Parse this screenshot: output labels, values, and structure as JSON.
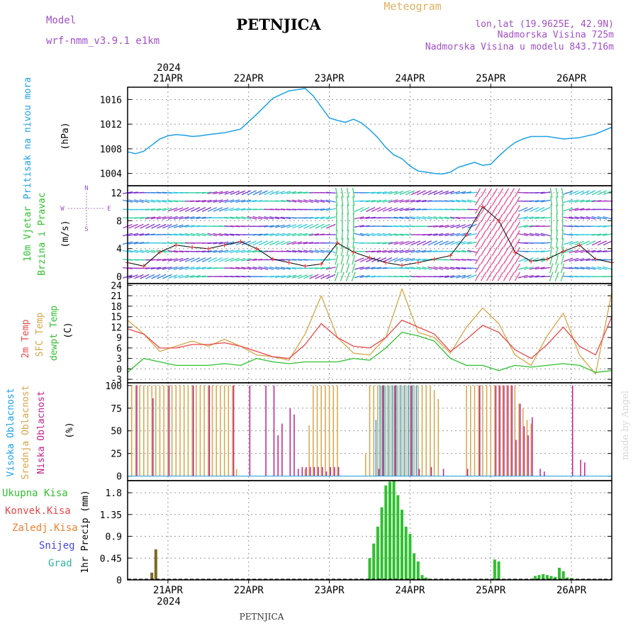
{
  "header": {
    "model_label": "Model",
    "model_name": "wrf-nmm_v3.9.1 e1km",
    "location": "PETNJICA",
    "product": "Meteogram",
    "coords": "lon,lat (19.9625E, 42.9N)",
    "elevation": "Nadmorska Visina 725m",
    "model_elevation": "Nadmorska Visina u modelu 843.716m"
  },
  "footer": {
    "location": "PETNJICA",
    "credit": "made by Angel"
  },
  "colors": {
    "pressure": "#1ea0e6",
    "temp2m": "#e8484a",
    "sfc": "#d6a54a",
    "dewpt": "#30c030",
    "high_cloud": "#1ea0e6",
    "mid_cloud": "#d6a54a",
    "low_cloud": "#c0208a",
    "total_precip": "#30c030",
    "conv_precip": "#e8484a",
    "freezing": "#f08030",
    "snow": "#4444dd",
    "hail": "#30b0a0",
    "purple_text": "#a050c8",
    "orange_text": "#e0b060"
  },
  "chart_data": [
    {
      "type": "line",
      "id": "pressure",
      "ylabel": [
        "Pritisak na nivou mora",
        "(hPa)"
      ],
      "x_unit": "days since 2024-04-20 12:00",
      "xlim": [
        0,
        6
      ],
      "ylim": [
        1002,
        1018
      ],
      "yticks": [
        1004,
        1008,
        1012,
        1016
      ],
      "grid": true,
      "top_axis": {
        "year": "2024",
        "ticks": [
          "21APR",
          "22APR",
          "23APR",
          "24APR",
          "25APR",
          "26APR"
        ]
      },
      "series": [
        {
          "name": "Pritisak na nivou mora",
          "x": [
            0,
            0.1,
            0.2,
            0.3,
            0.4,
            0.5,
            0.6,
            0.7,
            0.8,
            0.9,
            1.0,
            1.2,
            1.4,
            1.6,
            1.8,
            2.0,
            2.2,
            2.3,
            2.4,
            2.5,
            2.6,
            2.7,
            2.8,
            2.9,
            3.0,
            3.1,
            3.2,
            3.3,
            3.4,
            3.5,
            3.6,
            3.7,
            3.8,
            3.9,
            4.0,
            4.1,
            4.2,
            4.3,
            4.4,
            4.5,
            4.6,
            4.7,
            4.8,
            4.9,
            5.0,
            5.2,
            5.4,
            5.6,
            5.8,
            6.0
          ],
          "values": [
            1007.5,
            1007.2,
            1007.6,
            1008.6,
            1009.6,
            1010.1,
            1010.3,
            1010.2,
            1010.0,
            1010.1,
            1010.3,
            1010.6,
            1011.2,
            1013.6,
            1016.2,
            1017.4,
            1017.8,
            1016.6,
            1014.8,
            1013.0,
            1012.6,
            1012.3,
            1012.8,
            1012.2,
            1011.1,
            1009.8,
            1008.2,
            1007.0,
            1006.4,
            1005.2,
            1004.4,
            1004.2,
            1004.0,
            1003.9,
            1004.2,
            1005.0,
            1005.4,
            1005.8,
            1005.3,
            1005.5,
            1006.8,
            1008.0,
            1009.0,
            1009.6,
            1010.0,
            1010.0,
            1009.6,
            1009.8,
            1010.4,
            1011.5
          ]
        }
      ]
    },
    {
      "type": "line",
      "id": "wind",
      "ylabel": [
        "10m Vjetar",
        "Brzina i Pravac",
        "(m/s)"
      ],
      "compass": [
        "N",
        "W",
        "E",
        "S"
      ],
      "xlim": [
        0,
        6
      ],
      "ylim": [
        -1,
        13
      ],
      "yticks": [
        0,
        4,
        8,
        12
      ],
      "grid": true,
      "series": [
        {
          "name": "Brzina",
          "x": [
            0,
            0.2,
            0.4,
            0.6,
            0.8,
            1.0,
            1.2,
            1.4,
            1.6,
            1.8,
            2.0,
            2.2,
            2.4,
            2.6,
            2.8,
            3.0,
            3.2,
            3.4,
            3.6,
            3.8,
            4.0,
            4.2,
            4.4,
            4.6,
            4.8,
            5.0,
            5.2,
            5.4,
            5.6,
            5.8,
            6.0
          ],
          "values": [
            2,
            1.5,
            3.5,
            4.5,
            4.2,
            4.0,
            4.5,
            5.0,
            4.0,
            2.5,
            2.0,
            1.5,
            1.8,
            4.8,
            3.5,
            2.7,
            2.0,
            1.6,
            2.0,
            2.5,
            3.0,
            6.0,
            10.0,
            8.0,
            3.5,
            2.2,
            2.5,
            3.6,
            4.5,
            2.5,
            2.0
          ]
        }
      ]
    },
    {
      "type": "line",
      "id": "temperature",
      "ylabel": [
        "2m Temp",
        "SFC Temp",
        "dewpt Temp",
        "(C)"
      ],
      "xlim": [
        0,
        6
      ],
      "ylim": [
        -4,
        24.5
      ],
      "yticks": [
        -3,
        0,
        3,
        6,
        9,
        12,
        15,
        18,
        21,
        24
      ],
      "grid": true,
      "series": [
        {
          "name": "2m Temp",
          "x": [
            0,
            0.2,
            0.4,
            0.6,
            0.8,
            1.0,
            1.2,
            1.4,
            1.6,
            1.8,
            2.0,
            2.2,
            2.4,
            2.6,
            2.8,
            3.0,
            3.2,
            3.4,
            3.6,
            3.8,
            4.0,
            4.2,
            4.4,
            4.6,
            4.8,
            5.0,
            5.2,
            5.4,
            5.6,
            5.8,
            6.0
          ],
          "values": [
            11.5,
            10.0,
            6.0,
            6.0,
            7.0,
            7.0,
            7.5,
            6.5,
            5.0,
            3.5,
            3.0,
            7.0,
            13.0,
            9.0,
            6.5,
            6.0,
            9.0,
            14.0,
            12.0,
            10.0,
            5.0,
            8.5,
            12.5,
            10.5,
            5.5,
            3.0,
            7.0,
            12.0,
            6.5,
            4.0,
            15.0
          ]
        },
        {
          "name": "SFC Temp",
          "x": [
            0,
            0.2,
            0.4,
            0.6,
            0.8,
            1.0,
            1.2,
            1.4,
            1.6,
            1.8,
            2.0,
            2.2,
            2.4,
            2.6,
            2.8,
            3.0,
            3.2,
            3.4,
            3.6,
            3.8,
            4.0,
            4.2,
            4.4,
            4.6,
            4.8,
            5.0,
            5.2,
            5.4,
            5.6,
            5.8,
            6.0
          ],
          "values": [
            14.0,
            10.0,
            5.0,
            6.5,
            8.0,
            6.5,
            8.5,
            6.5,
            4.0,
            3.5,
            2.5,
            10.0,
            21.0,
            9.0,
            4.5,
            4.0,
            9.0,
            23.0,
            10.5,
            9.0,
            4.5,
            12.0,
            17.5,
            13.0,
            4.0,
            1.0,
            9.5,
            16.0,
            4.0,
            -1.5,
            22.0
          ]
        },
        {
          "name": "dewpt Temp",
          "x": [
            0,
            0.2,
            0.4,
            0.6,
            0.8,
            1.0,
            1.2,
            1.4,
            1.6,
            1.8,
            2.0,
            2.2,
            2.4,
            2.6,
            2.8,
            3.0,
            3.2,
            3.4,
            3.6,
            3.8,
            4.0,
            4.2,
            4.4,
            4.6,
            4.8,
            5.0,
            5.2,
            5.4,
            5.6,
            5.8,
            6.0
          ],
          "values": [
            -1.0,
            3.0,
            2.0,
            1.0,
            1.0,
            1.0,
            1.5,
            1.0,
            3.0,
            2.0,
            1.5,
            2.0,
            2.0,
            2.0,
            3.0,
            2.5,
            6.0,
            10.5,
            9.5,
            8.0,
            3.0,
            1.0,
            1.0,
            -0.5,
            1.0,
            0.5,
            1.0,
            1.5,
            1.0,
            -1.0,
            -0.5
          ]
        }
      ]
    },
    {
      "type": "bar",
      "id": "clouds",
      "ylabel": [
        "Visoka Oblacnost",
        "Srednja Oblacnost",
        "Niska Oblacnost",
        "(%)"
      ],
      "xlim": [
        0,
        6
      ],
      "ylim": [
        -5,
        103
      ],
      "yticks": [
        0,
        25,
        50,
        75,
        100
      ],
      "grid": true,
      "series": [
        {
          "name": "Srednja Oblacnost",
          "x": [
            0.05,
            0.1,
            0.15,
            0.2,
            0.25,
            0.3,
            0.35,
            0.4,
            0.45,
            0.5,
            0.55,
            0.6,
            0.65,
            0.7,
            0.75,
            0.8,
            0.85,
            0.9,
            0.95,
            1.0,
            1.05,
            1.1,
            1.15,
            1.2,
            1.25,
            1.3,
            1.35,
            2.2,
            2.25,
            2.3,
            2.35,
            2.4,
            2.45,
            2.5,
            2.55,
            2.6,
            2.95,
            3.0,
            3.05,
            3.1,
            3.15,
            3.2,
            3.25,
            3.3,
            3.35,
            3.4,
            3.45,
            3.5,
            3.55,
            3.6,
            3.65,
            3.7,
            3.75,
            3.8,
            3.85,
            4.2,
            4.25,
            4.3,
            4.35,
            4.4,
            4.45,
            4.5,
            4.55,
            4.6,
            4.65,
            4.7,
            4.75,
            4.8,
            4.85,
            4.9,
            4.95,
            5.0
          ],
          "values": [
            100,
            100,
            100,
            100,
            100,
            100,
            100,
            100,
            100,
            100,
            100,
            100,
            100,
            100,
            100,
            100,
            100,
            100,
            100,
            100,
            100,
            100,
            100,
            100,
            100,
            100,
            8,
            8,
            56,
            100,
            100,
            100,
            100,
            100,
            100,
            100,
            25,
            100,
            100,
            100,
            100,
            100,
            100,
            100,
            100,
            100,
            100,
            100,
            100,
            100,
            100,
            100,
            100,
            95,
            85,
            100,
            100,
            100,
            100,
            100,
            100,
            100,
            100,
            100,
            100,
            100,
            100,
            100,
            80,
            75,
            62,
            58
          ]
        },
        {
          "name": "Niska Oblacnost",
          "x": [
            0.1,
            0.3,
            0.5,
            0.8,
            1.0,
            1.3,
            1.5,
            1.7,
            1.8,
            1.85,
            1.9,
            2.0,
            2.05,
            2.1,
            2.15,
            2.2,
            2.25,
            2.3,
            2.35,
            2.4,
            2.45,
            2.5,
            2.55,
            2.6,
            3.1,
            3.15,
            3.3,
            3.5,
            3.6,
            3.75,
            3.9,
            4.2,
            4.35,
            4.55,
            4.6,
            4.65,
            4.7,
            4.75,
            4.8,
            4.85,
            4.9,
            4.95,
            5.0,
            5.1,
            5.15,
            5.5,
            5.6,
            5.65
          ],
          "values": [
            100,
            86,
            100,
            100,
            100,
            100,
            100,
            100,
            100,
            45,
            58,
            75,
            68,
            8,
            10,
            10,
            10,
            10,
            10,
            10,
            5,
            10,
            10,
            10,
            8,
            100,
            100,
            100,
            8,
            10,
            8,
            8,
            100,
            100,
            100,
            100,
            100,
            100,
            40,
            80,
            55,
            45,
            65,
            8,
            5,
            100,
            18,
            15
          ]
        },
        {
          "name": "Visoka Oblacnost",
          "x": [
            3.05,
            3.1,
            3.15,
            3.2,
            3.25,
            3.3,
            3.35,
            3.4,
            3.45,
            3.5,
            3.55
          ],
          "values": [
            62,
            100,
            100,
            100,
            100,
            100,
            100,
            100,
            100,
            100,
            100
          ]
        }
      ]
    },
    {
      "type": "bar",
      "id": "precipitation",
      "ylabel": [
        "1hr Precip",
        "(mm)"
      ],
      "legend": [
        "Ukupna Kisa",
        "Konvek.Kisa",
        "Zaledj.Kisa",
        "Snijeg",
        "Grad"
      ],
      "xlim": [
        0,
        6
      ],
      "ylim": [
        0,
        2.05
      ],
      "yticks": [
        0,
        0.45,
        0.9,
        1.35,
        1.8
      ],
      "yticklabels": [
        "0",
        "0.45",
        "0.9",
        "1.35",
        "1.8"
      ],
      "bottom_axis": {
        "ticks": [
          "21APR",
          "22APR",
          "23APR",
          "24APR",
          "25APR",
          "26APR"
        ],
        "year": "2024"
      },
      "grid": true,
      "series": [
        {
          "name": "Ukupna Kisa",
          "x": [
            3.0,
            3.05,
            3.1,
            3.15,
            3.2,
            3.25,
            3.3,
            3.35,
            3.4,
            3.45,
            3.5,
            3.55,
            3.6,
            3.65,
            3.7,
            4.55,
            4.6,
            5.05,
            5.1,
            5.15,
            5.2,
            5.25,
            5.3,
            5.35,
            5.4,
            5.45,
            5.5
          ],
          "values": [
            0.45,
            0.75,
            1.1,
            1.5,
            1.95,
            2.03,
            2.05,
            1.75,
            1.45,
            1.1,
            0.95,
            0.55,
            0.38,
            0.1,
            0.05,
            0.42,
            0.38,
            0.08,
            0.1,
            0.12,
            0.1,
            0.08,
            0.06,
            0.25,
            0.18,
            0.05,
            0.04
          ]
        },
        {
          "name": "Konvek.Kisa",
          "x": [
            0.3,
            0.35
          ],
          "values": [
            0.15,
            0.63
          ]
        },
        {
          "name": "Zaledj.Kisa",
          "x": [],
          "values": []
        },
        {
          "name": "Snijeg",
          "x": [],
          "values": []
        },
        {
          "name": "Grad",
          "x": [],
          "values": []
        }
      ]
    }
  ]
}
